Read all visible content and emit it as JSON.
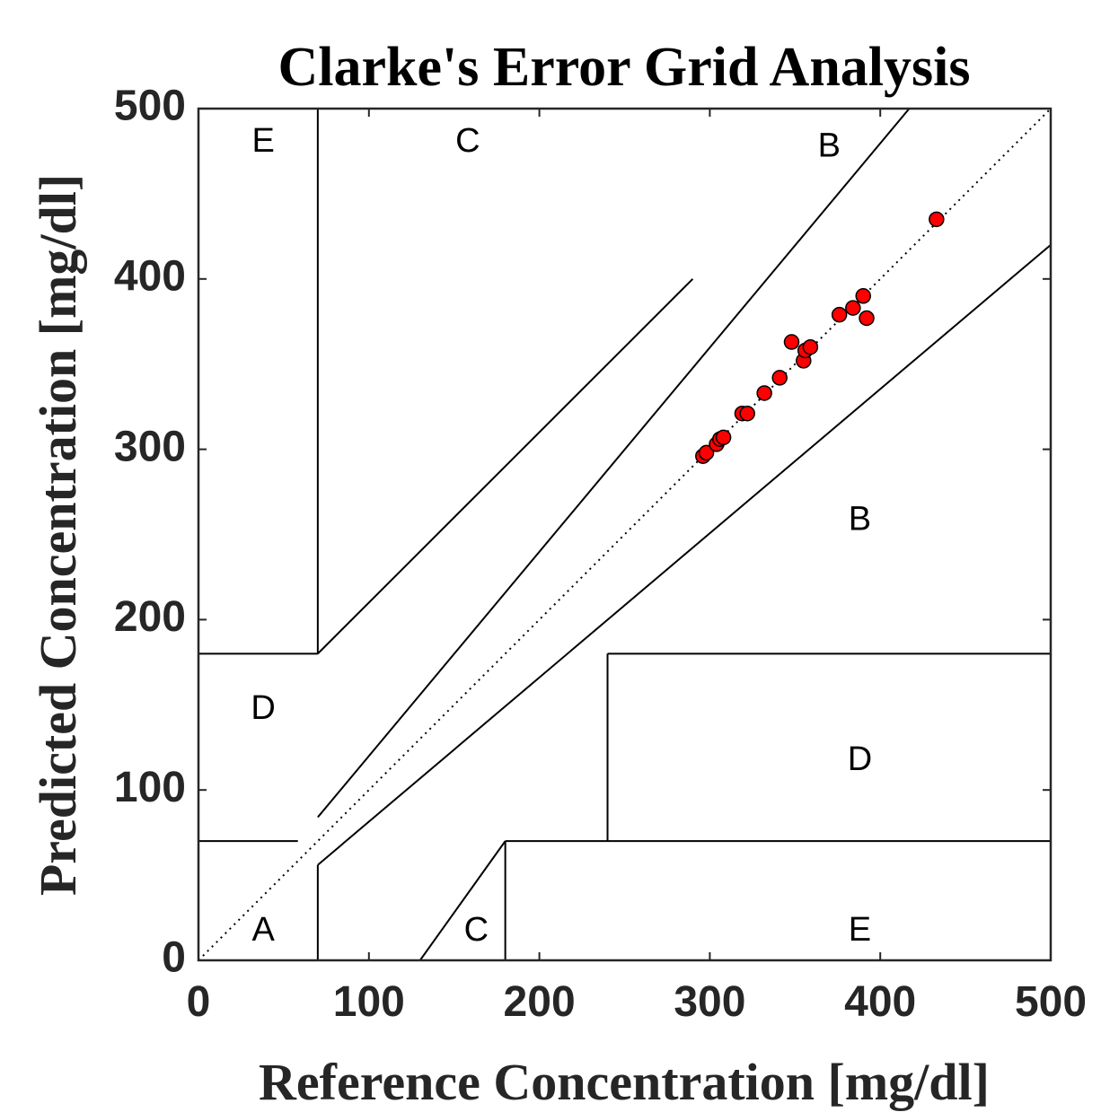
{
  "chart_data": {
    "type": "scatter",
    "title": "Clarke's Error Grid Analysis",
    "xlabel": "Reference Concentration [mg/dl]",
    "ylabel": "Predicted Concentration [mg/dl]",
    "xlim": [
      0,
      500
    ],
    "ylim": [
      0,
      500
    ],
    "xticks": [
      0,
      100,
      200,
      300,
      400,
      500
    ],
    "yticks": [
      0,
      100,
      200,
      300,
      400,
      500
    ],
    "grid": false,
    "marker_color": "#ff0000",
    "marker_edge_color": "#000000",
    "identity_line": {
      "style": "dotted",
      "from": [
        0,
        0
      ],
      "to": [
        500,
        500
      ]
    },
    "zone_lines": [
      [
        [
          70,
          500
        ],
        [
          70,
          180
        ]
      ],
      [
        [
          0,
          180
        ],
        [
          70,
          180
        ]
      ],
      [
        [
          70,
          180
        ],
        [
          290,
          400
        ]
      ],
      [
        [
          70,
          84
        ],
        [
          417,
          500
        ]
      ],
      [
        [
          0,
          70
        ],
        [
          58.33,
          70
        ]
      ],
      [
        [
          70,
          56
        ],
        [
          500,
          420
        ]
      ],
      [
        [
          70,
          0
        ],
        [
          70,
          56
        ]
      ],
      [
        [
          130,
          0
        ],
        [
          180,
          70
        ]
      ],
      [
        [
          180,
          0
        ],
        [
          180,
          70
        ]
      ],
      [
        [
          180,
          70
        ],
        [
          500,
          70
        ]
      ],
      [
        [
          240,
          70
        ],
        [
          240,
          180
        ]
      ],
      [
        [
          240,
          180
        ],
        [
          500,
          180
        ]
      ]
    ],
    "zone_labels": [
      {
        "text": "E",
        "x": 38,
        "y": 480
      },
      {
        "text": "C",
        "x": 158,
        "y": 480
      },
      {
        "text": "B",
        "x": 370,
        "y": 477
      },
      {
        "text": "B",
        "x": 388,
        "y": 258
      },
      {
        "text": "D",
        "x": 38,
        "y": 147
      },
      {
        "text": "D",
        "x": 388,
        "y": 117
      },
      {
        "text": "A",
        "x": 38,
        "y": 17
      },
      {
        "text": "C",
        "x": 163,
        "y": 17
      },
      {
        "text": "E",
        "x": 388,
        "y": 17
      }
    ],
    "points": [
      [
        296,
        296
      ],
      [
        298,
        298
      ],
      [
        304,
        303
      ],
      [
        306,
        306
      ],
      [
        308,
        307
      ],
      [
        319,
        321
      ],
      [
        322,
        321
      ],
      [
        332,
        333
      ],
      [
        341,
        342
      ],
      [
        348,
        363
      ],
      [
        355,
        352
      ],
      [
        356,
        358
      ],
      [
        359,
        360
      ],
      [
        376,
        379
      ],
      [
        384,
        383
      ],
      [
        390,
        390
      ],
      [
        392,
        377
      ],
      [
        433,
        435
      ]
    ]
  }
}
